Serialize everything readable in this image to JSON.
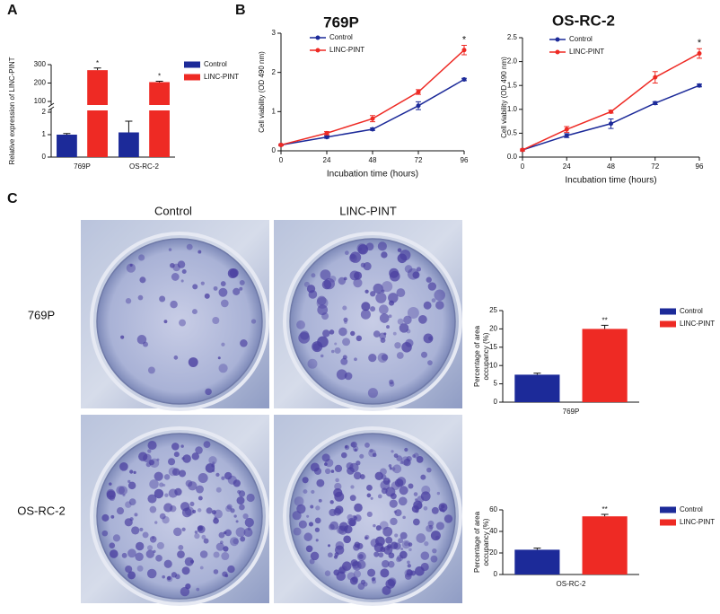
{
  "panel_labels": [
    "A",
    "B",
    "C"
  ],
  "photo_grid": {
    "columns": [
      "Control",
      "LINC-PINT"
    ],
    "rows": [
      "769P",
      "OS-RC-2"
    ]
  },
  "chart_data": [
    {
      "type": "bar",
      "ylabel": "Relative expression of LINC-PINT",
      "categories": [
        "769P",
        "OS-RC-2"
      ],
      "series": [
        {
          "name": "Control",
          "color": "#1c2a99",
          "values": [
            1.0,
            1.1
          ],
          "errors": [
            0.05,
            0.5
          ]
        },
        {
          "name": "LINC-PINT",
          "color": "#ee2a24",
          "values": [
            270,
            205
          ],
          "errors": [
            12,
            5
          ]
        }
      ],
      "annotations": [
        "*",
        "*"
      ],
      "ylim": [
        0,
        300
      ],
      "ybreak": [
        2,
        100
      ],
      "yticks": [
        0,
        1,
        2,
        100,
        200,
        300
      ]
    },
    {
      "type": "line",
      "title": "769P",
      "xlabel": "Incubation time (hours)",
      "ylabel": "Cell viability (OD 490 nm)",
      "x": [
        0,
        24,
        48,
        72,
        96
      ],
      "series": [
        {
          "name": "Control",
          "color": "#1c2a99",
          "values": [
            0.15,
            0.35,
            0.55,
            1.15,
            1.82
          ],
          "errors": [
            0.02,
            0.03,
            0.03,
            0.1,
            0.03
          ]
        },
        {
          "name": "LINC-PINT",
          "color": "#ee2a24",
          "values": [
            0.15,
            0.45,
            0.82,
            1.5,
            2.57
          ],
          "errors": [
            0.02,
            0.04,
            0.08,
            0.06,
            0.12
          ]
        }
      ],
      "annotations": [
        "*"
      ],
      "xlim": [
        0,
        96
      ],
      "xticks": [
        0,
        24,
        48,
        72,
        96
      ],
      "ylim": [
        0,
        3
      ],
      "yticks": [
        0,
        1,
        2,
        3
      ]
    },
    {
      "type": "line",
      "title": "OS-RC-2",
      "xlabel": "Incubation time (hours)",
      "ylabel": "Cell viability (OD 490 nm)",
      "x": [
        0,
        24,
        48,
        72,
        96
      ],
      "series": [
        {
          "name": "Control",
          "color": "#1c2a99",
          "values": [
            0.15,
            0.45,
            0.7,
            1.13,
            1.5
          ],
          "errors": [
            0.02,
            0.04,
            0.1,
            0.03,
            0.03
          ]
        },
        {
          "name": "LINC-PINT",
          "color": "#ee2a24",
          "values": [
            0.15,
            0.58,
            0.95,
            1.67,
            2.17
          ],
          "errors": [
            0.02,
            0.06,
            0.03,
            0.12,
            0.1
          ]
        }
      ],
      "annotations": [
        "*"
      ],
      "xlim": [
        0,
        96
      ],
      "xticks": [
        0,
        24,
        48,
        72,
        96
      ],
      "ylim": [
        0,
        2.5
      ],
      "yticks": [
        {
          "value": 0,
          "label": "0.0"
        },
        0.5,
        {
          "value": 1,
          "label": "1.0"
        },
        1.5,
        {
          "value": 2,
          "label": "2.0"
        },
        2.5
      ]
    },
    {
      "type": "bar",
      "ylabel": [
        "Percentage of area",
        "occupancy (%)"
      ],
      "categories": [
        "769P"
      ],
      "series": [
        {
          "name": "Control",
          "color": "#1c2a99",
          "values": [
            7.5
          ],
          "errors": [
            0.4
          ]
        },
        {
          "name": "LINC-PINT",
          "color": "#ee2a24",
          "values": [
            20
          ],
          "errors": [
            1
          ]
        }
      ],
      "annotations": [
        "**"
      ],
      "ylim": [
        0,
        25
      ],
      "yticks": [
        0,
        5,
        10,
        15,
        20,
        25
      ]
    },
    {
      "type": "bar",
      "ylabel": [
        "Percentage of area",
        "occupancy (%)"
      ],
      "categories": [
        "OS-RC-2"
      ],
      "series": [
        {
          "name": "Control",
          "color": "#1c2a99",
          "values": [
            23
          ],
          "errors": [
            1.5
          ]
        },
        {
          "name": "LINC-PINT",
          "color": "#ee2a24",
          "values": [
            54
          ],
          "errors": [
            1.8
          ]
        }
      ],
      "annotations": [
        "**"
      ],
      "ylim": [
        0,
        60
      ],
      "yticks": [
        0,
        20,
        40,
        60
      ]
    }
  ]
}
